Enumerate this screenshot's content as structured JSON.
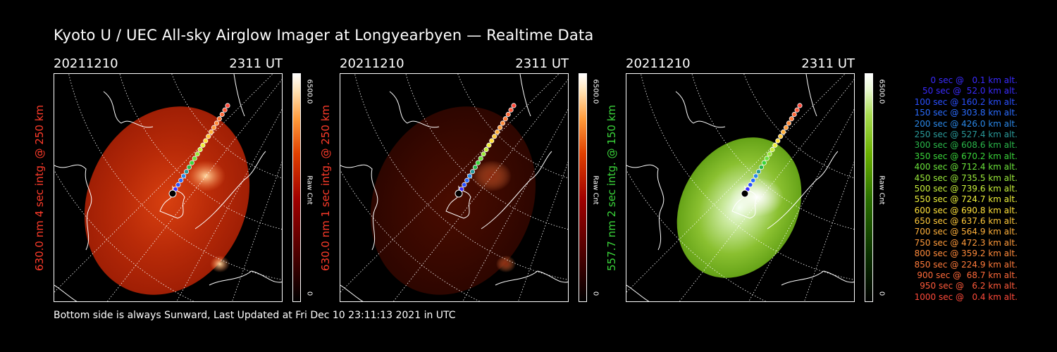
{
  "page_title": "Kyoto U / UEC All-sky Airglow Imager at Longyearbyen — Realtime Data",
  "footer": "Bottom side is always Sunward, Last Updated at Fri Dec 10 23:11:13 2021 in UTC",
  "panels": [
    {
      "date": "20211210",
      "time": "2311 UT",
      "ylabel": "630.0 nm 4 sec intg. @ 250 km",
      "ylabel_color": "#ff3b2a",
      "cbar_max": "6500.0",
      "cbar_min": "0",
      "cbar_label": "Raw Cnt",
      "palette": "red",
      "intensity": "bright"
    },
    {
      "date": "20211210",
      "time": "2311 UT",
      "ylabel": "630.0 nm 1 sec intg. @ 250 km",
      "ylabel_color": "#ff3b2a",
      "cbar_max": "6500.0",
      "cbar_min": "0",
      "cbar_label": "Raw Cnt",
      "palette": "red",
      "intensity": "dim"
    },
    {
      "date": "20211210",
      "time": "2311 UT",
      "ylabel": "557.7 nm 2 sec intg. @ 150 km",
      "ylabel_color": "#3ad43a",
      "cbar_max": "6500.0",
      "cbar_min": "0",
      "cbar_label": "Raw Cnt",
      "palette": "green",
      "intensity": "bright"
    }
  ],
  "legend": [
    {
      "text": "0 sec @   0.1 km alt.",
      "color": "#3a2bff"
    },
    {
      "text": "50 sec @  52.0 km alt.",
      "color": "#3a2bff"
    },
    {
      "text": "100 sec @ 160.2 km alt.",
      "color": "#2a50ff"
    },
    {
      "text": "150 sec @ 303.8 km alt.",
      "color": "#2a6cff"
    },
    {
      "text": "200 sec @ 426.0 km alt.",
      "color": "#2a88e8"
    },
    {
      "text": "250 sec @ 527.4 km alt.",
      "color": "#2a9a9a"
    },
    {
      "text": "300 sec @ 608.6 km alt.",
      "color": "#2ab84a"
    },
    {
      "text": "350 sec @ 670.2 km alt.",
      "color": "#3ad43a"
    },
    {
      "text": "400 sec @ 712.4 km alt.",
      "color": "#6ae23a"
    },
    {
      "text": "450 sec @ 735.5 km alt.",
      "color": "#9aea3a"
    },
    {
      "text": "500 sec @ 739.6 km alt.",
      "color": "#c8f03a"
    },
    {
      "text": "550 sec @ 724.7 km alt.",
      "color": "#eef03a"
    },
    {
      "text": "600 sec @ 690.8 km alt.",
      "color": "#ffe03a"
    },
    {
      "text": "650 sec @ 637.6 km alt.",
      "color": "#ffc83a"
    },
    {
      "text": "700 sec @ 564.9 km alt.",
      "color": "#ffb03a"
    },
    {
      "text": "750 sec @ 472.3 km alt.",
      "color": "#ff9a3a"
    },
    {
      "text": "800 sec @ 359.2 km alt.",
      "color": "#ff8a3a"
    },
    {
      "text": "850 sec @ 224.9 km alt.",
      "color": "#ff7a3a"
    },
    {
      "text": "900 sec @  68.7 km alt.",
      "color": "#ff6a3a"
    },
    {
      "text": "950 sec @   6.2 km alt.",
      "color": "#ff5a3a"
    },
    {
      "text": "1000 sec @   0.4 km alt.",
      "color": "#ff4a3a"
    }
  ]
}
